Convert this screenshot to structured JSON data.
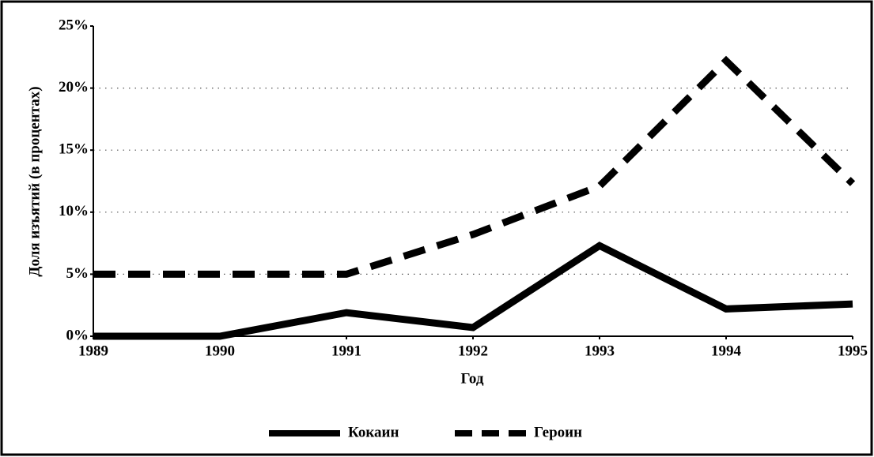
{
  "chart_data": {
    "type": "line",
    "x": [
      1989,
      1990,
      1991,
      1992,
      1993,
      1994,
      1995
    ],
    "xlim": [
      1989,
      1995
    ],
    "xticks": [
      1989,
      1990,
      1991,
      1992,
      1993,
      1994,
      1995
    ],
    "xlabel": "Год",
    "ylabel": "Доля изъятий (в процентах)",
    "ylim": [
      0,
      25
    ],
    "yticks": [
      {
        "value": 0,
        "label": "0%"
      },
      {
        "value": 5,
        "label": "5%"
      },
      {
        "value": 10,
        "label": "10%"
      },
      {
        "value": 15,
        "label": "15%"
      },
      {
        "value": 20,
        "label": "20%"
      },
      {
        "value": 25,
        "label": "25%"
      }
    ],
    "grid": true,
    "legend": "bottom",
    "series": [
      {
        "name": "Кокаин",
        "color": "#000000",
        "dash": "solid",
        "values": [
          0,
          0,
          1.9,
          0.7,
          7.3,
          2.2,
          2.6
        ]
      },
      {
        "name": "Героин",
        "color": "#000000",
        "dash": "dashed",
        "values": [
          5,
          5,
          5,
          8.2,
          12.1,
          22.2,
          12.3
        ]
      }
    ]
  }
}
